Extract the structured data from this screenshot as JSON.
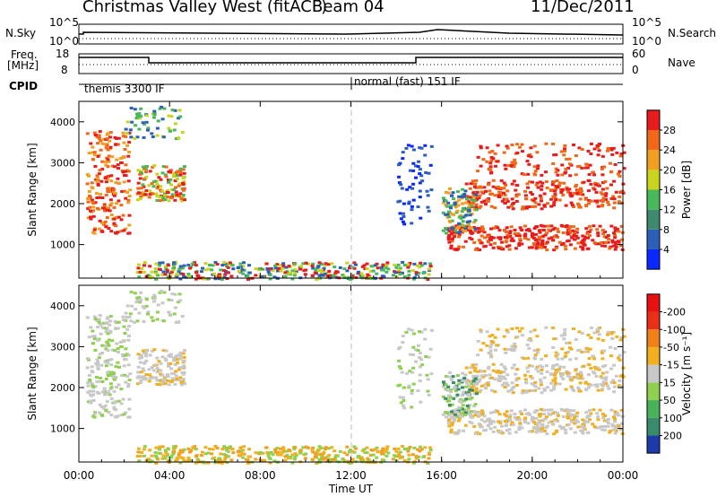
{
  "header": {
    "title": "Christmas Valley West (fitACF)",
    "beam": "Beam 04",
    "date": "11/Dec/2011"
  },
  "status_panels": {
    "nsky_label": "N.Sky",
    "nsearch_label": "N.Search",
    "freq_label_1": "Freq.",
    "freq_label_2": "[MHz]",
    "nave_label": "Nave",
    "cpid_label": "CPID",
    "nsky_ticks": [
      "10^5",
      "10^0"
    ],
    "nsearch_ticks": [
      "10^5",
      "10^0"
    ],
    "freq_ticks": [
      "18",
      "8"
    ],
    "nave_ticks": [
      "60",
      "0"
    ],
    "cpid_modes": [
      {
        "label": "themis 3300 IF",
        "start_hour": 0.0,
        "end_hour": 12.0
      },
      {
        "label": "normal (fast) 151 IF",
        "start_hour": 12.0,
        "end_hour": 24.0
      }
    ]
  },
  "chart_data": [
    {
      "type": "heatmap",
      "title": "",
      "ylabel": "Slant Range [km]",
      "xlabel": "",
      "ylim": [
        180,
        4500
      ],
      "xlim": [
        0,
        24
      ],
      "yticks": [
        "1000",
        "2000",
        "3000",
        "4000"
      ],
      "colorbar": {
        "label": "Power [dB]",
        "ticks": [
          "4",
          "8",
          "12",
          "16",
          "20",
          "24",
          "28"
        ],
        "range": [
          0,
          30
        ],
        "colors": [
          "#0a28ff",
          "#2e5fb8",
          "#3f8a6e",
          "#48b85a",
          "#c8d41e",
          "#f0a020",
          "#f06818",
          "#e81c1c"
        ]
      }
    },
    {
      "type": "heatmap",
      "title": "",
      "ylabel": "Slant Range [km]",
      "xlabel": "Time UT",
      "ylim": [
        180,
        4500
      ],
      "xlim": [
        0,
        24
      ],
      "yticks": [
        "1000",
        "2000",
        "3000",
        "4000"
      ],
      "xticks": [
        "00:00",
        "04:00",
        "08:00",
        "12:00",
        "16:00",
        "20:00",
        "00:00"
      ],
      "colorbar": {
        "label": "Velocity [m s⁻¹]",
        "ticks": [
          "200",
          "100",
          "50",
          "15",
          "-15",
          "-50",
          "-100",
          "-200"
        ],
        "colors": [
          "#1c3aa8",
          "#3a8a6c",
          "#4ab05a",
          "#8fd050",
          "#c8c8c8",
          "#f0b020",
          "#f08018",
          "#e83018",
          "#e81010"
        ]
      }
    }
  ],
  "colors": {
    "power_strong": "#e81c1c",
    "ground_scatter": "#c8c8c8",
    "axis": "#000000",
    "gridline": "#bbbbbb"
  }
}
